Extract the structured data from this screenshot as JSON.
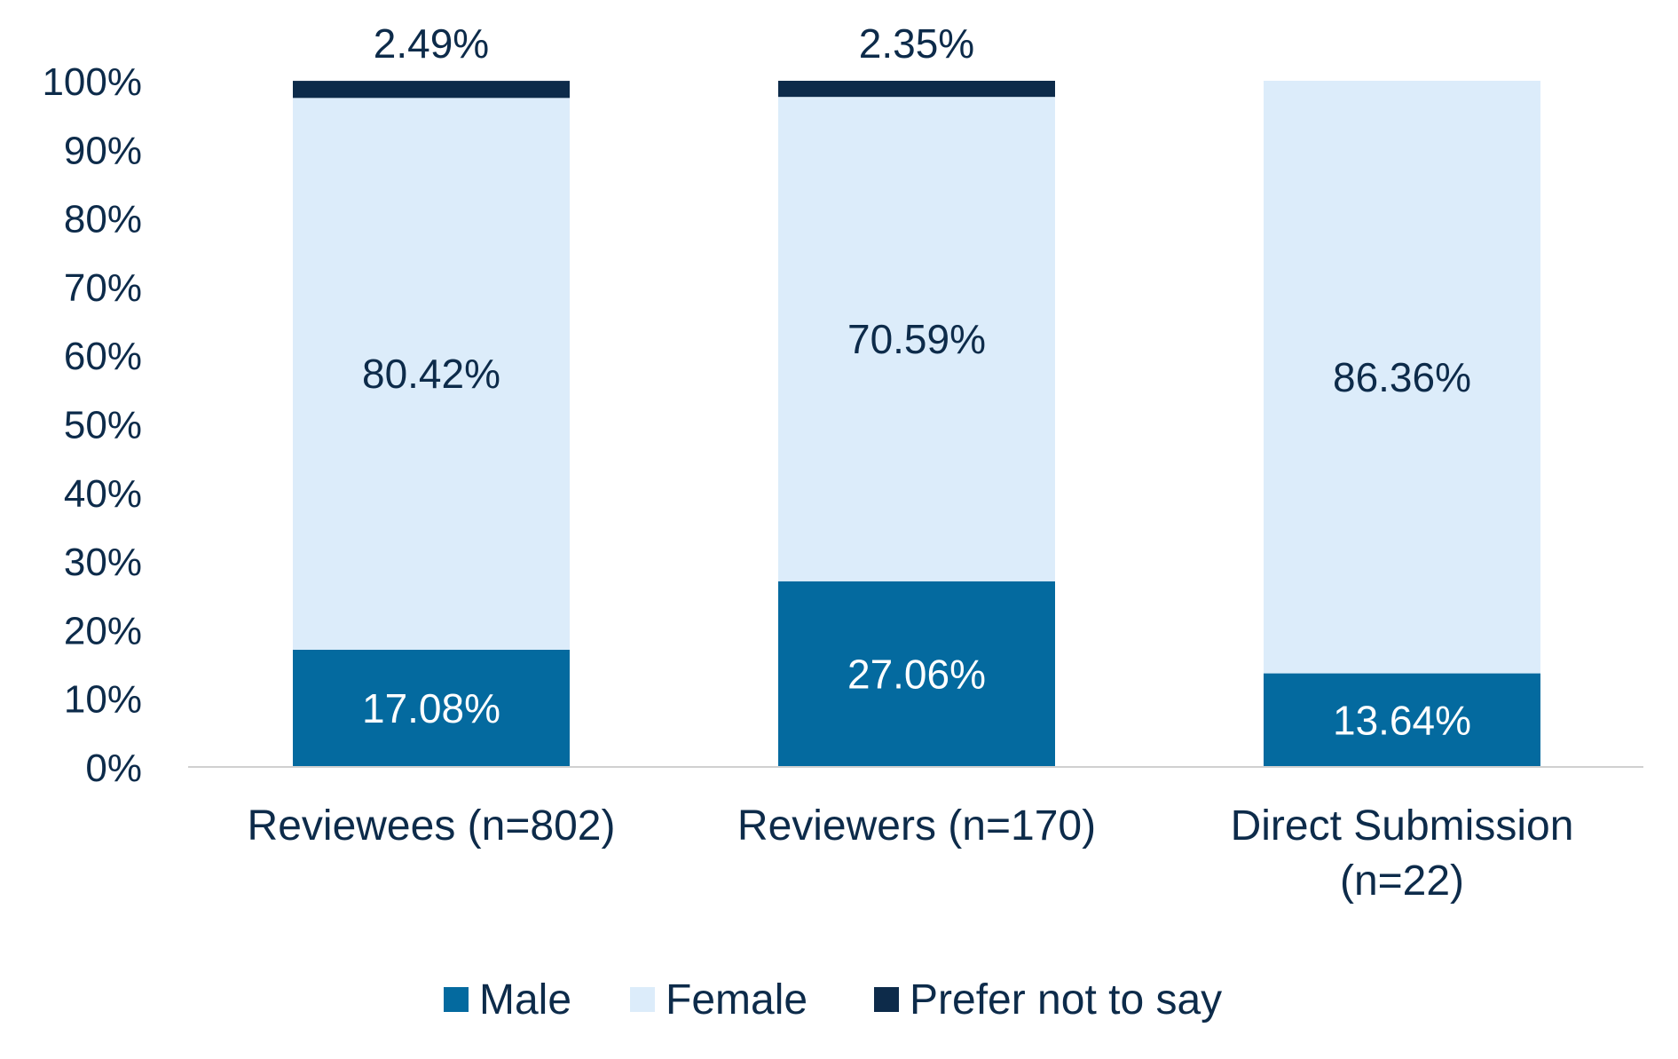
{
  "chart_data": {
    "type": "bar",
    "stacked": true,
    "categories": [
      [
        "Reviewees (n=802)"
      ],
      [
        "Reviewers (n=170)"
      ],
      [
        "Direct Submission",
        "(n=22)"
      ]
    ],
    "series": [
      {
        "name": "Male",
        "color": "#046a9f",
        "label_color": "#ffffff",
        "values": [
          17.08,
          27.06,
          13.64
        ],
        "labels": [
          "17.08%",
          "27.06%",
          "13.64%"
        ]
      },
      {
        "name": "Female",
        "color": "#dcecfa",
        "label_color": "#0d2b4a",
        "values": [
          80.42,
          70.59,
          86.36
        ],
        "labels": [
          "80.42%",
          "70.59%",
          "86.36%"
        ]
      },
      {
        "name": "Prefer not to say",
        "color": "#0d2b4a",
        "label_color": "#0d2b4a",
        "values": [
          2.49,
          2.35,
          0
        ],
        "labels": [
          "2.49%",
          "2.35%",
          ""
        ]
      }
    ],
    "y_ticks": [
      "0%",
      "10%",
      "20%",
      "30%",
      "40%",
      "50%",
      "60%",
      "70%",
      "80%",
      "90%",
      "100%"
    ],
    "ylim": [
      0,
      100
    ],
    "grid": false,
    "legend_position": "bottom",
    "axis_color": "#d0d0d0",
    "text_color": "#0d2b4a"
  }
}
